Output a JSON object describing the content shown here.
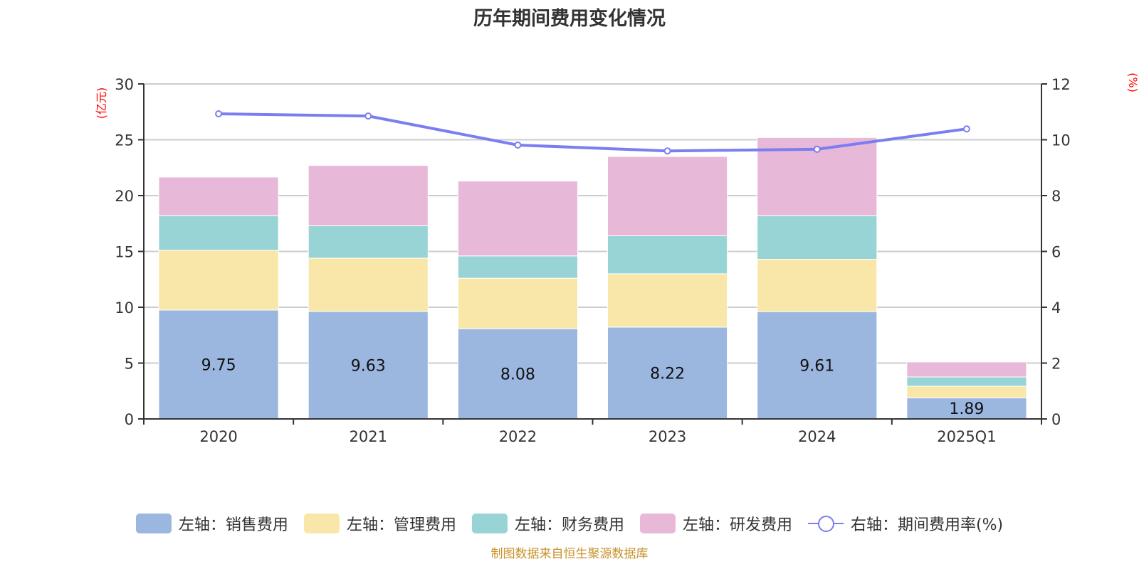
{
  "chart_data": {
    "type": "bar",
    "title": "历年期间费用变化情况",
    "categories": [
      "2020",
      "2021",
      "2022",
      "2023",
      "2024",
      "2025Q1"
    ],
    "left_axis": {
      "unit_label": "(亿元)",
      "ylim": [
        0,
        30
      ],
      "ticks": [
        "0",
        "5",
        "10",
        "15",
        "20",
        "25",
        "30"
      ]
    },
    "right_axis": {
      "unit_label": "(%)",
      "ylim": [
        0,
        12
      ],
      "ticks": [
        "0",
        "2",
        "4",
        "6",
        "8",
        "10",
        "12"
      ]
    },
    "grid": true,
    "stacked": true,
    "series": [
      {
        "name": "左轴：销售费用",
        "axis": "left",
        "type": "bar",
        "color": "#9bb7e0",
        "values": [
          9.75,
          9.63,
          8.08,
          8.22,
          9.61,
          1.89
        ],
        "labels": [
          "9.75",
          "9.63",
          "8.08",
          "8.22",
          "9.61",
          "1.89"
        ]
      },
      {
        "name": "左轴：管理费用",
        "axis": "left",
        "type": "bar",
        "color": "#f8e7a9",
        "values": [
          5.35,
          4.77,
          4.52,
          4.78,
          4.69,
          1.04
        ]
      },
      {
        "name": "左轴：财务费用",
        "axis": "left",
        "type": "bar",
        "color": "#98d4d5",
        "values": [
          3.1,
          2.9,
          2.0,
          3.4,
          3.9,
          0.83
        ]
      },
      {
        "name": "左轴：研发费用",
        "axis": "left",
        "type": "bar",
        "color": "#e8b8d8",
        "values": [
          3.46,
          5.4,
          6.7,
          7.1,
          7.0,
          1.34
        ]
      },
      {
        "name": "右轴：期间费用率(%)",
        "axis": "right",
        "type": "line",
        "color": "#7b7ef0",
        "values": [
          10.93,
          10.85,
          9.81,
          9.6,
          9.66,
          10.39
        ]
      }
    ],
    "legend_position": "bottom"
  },
  "source_note": "制图数据来自恒生聚源数据库"
}
